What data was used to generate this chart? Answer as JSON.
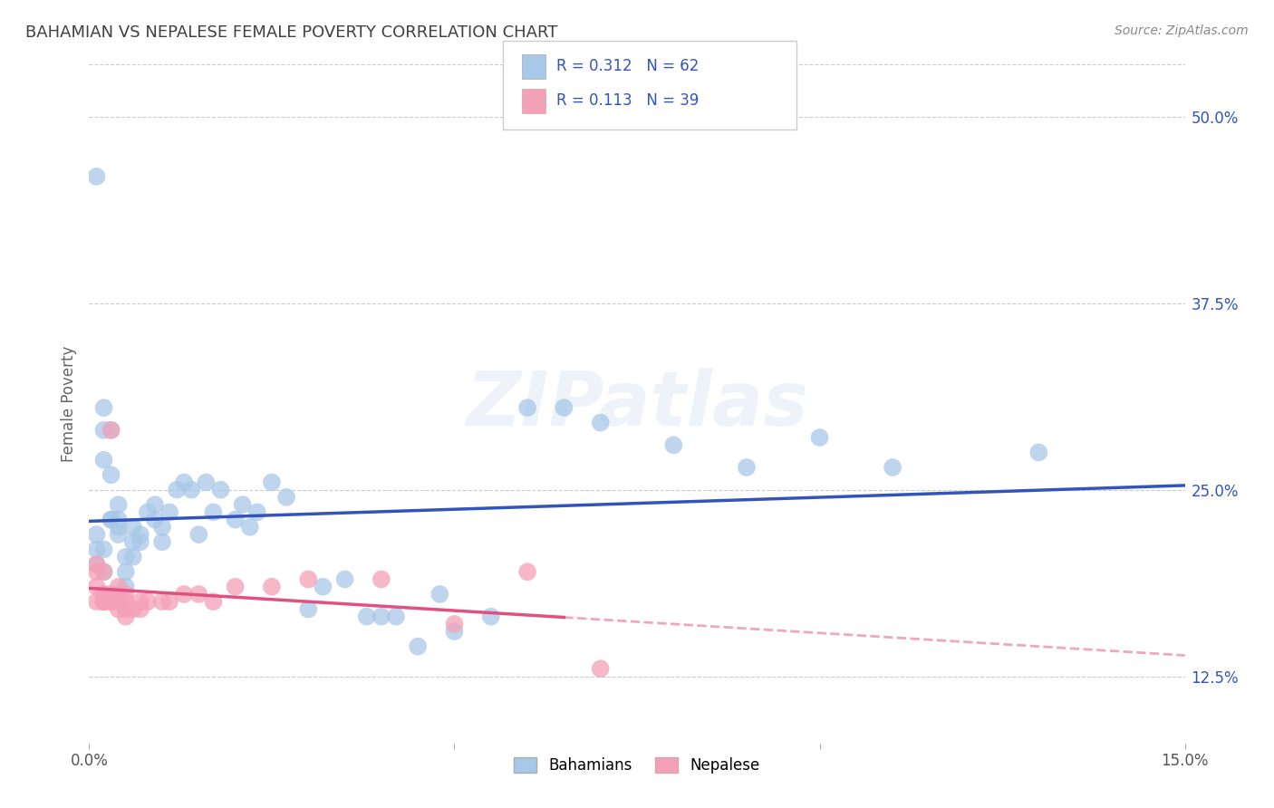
{
  "title": "BAHAMIAN VS NEPALESE FEMALE POVERTY CORRELATION CHART",
  "source": "Source: ZipAtlas.com",
  "ylabel": "Female Poverty",
  "xlim": [
    0.0,
    0.15
  ],
  "ylim": [
    0.08,
    0.535
  ],
  "xticks": [
    0.0,
    0.05,
    0.1,
    0.15
  ],
  "xticklabels": [
    "0.0%",
    "",
    "",
    "15.0%"
  ],
  "yticks_right": [
    0.125,
    0.25,
    0.375,
    0.5
  ],
  "yticklabels_right": [
    "12.5%",
    "25.0%",
    "37.5%",
    "50.0%"
  ],
  "bahamian_color": "#a8c8e8",
  "nepalese_color": "#f4a0b8",
  "bahamian_R": 0.312,
  "bahamian_N": 62,
  "nepalese_R": 0.113,
  "nepalese_N": 39,
  "bahamian_line_color": "#3355bb",
  "nepalese_line_color": "#e05080",
  "background_color": "#ffffff",
  "title_color": "#404040",
  "watermark": "ZIPatlas",
  "bahamian_x": [
    0.001,
    0.001,
    0.001,
    0.001,
    0.002,
    0.002,
    0.002,
    0.002,
    0.002,
    0.003,
    0.003,
    0.003,
    0.003,
    0.004,
    0.004,
    0.004,
    0.004,
    0.005,
    0.005,
    0.005,
    0.006,
    0.006,
    0.006,
    0.007,
    0.007,
    0.008,
    0.009,
    0.009,
    0.01,
    0.01,
    0.011,
    0.012,
    0.013,
    0.014,
    0.015,
    0.016,
    0.017,
    0.018,
    0.02,
    0.021,
    0.022,
    0.023,
    0.025,
    0.027,
    0.03,
    0.032,
    0.035,
    0.038,
    0.04,
    0.042,
    0.045,
    0.048,
    0.05,
    0.055,
    0.06,
    0.065,
    0.07,
    0.08,
    0.09,
    0.1,
    0.11,
    0.13
  ],
  "bahamian_y": [
    0.2,
    0.21,
    0.22,
    0.46,
    0.27,
    0.29,
    0.305,
    0.21,
    0.195,
    0.23,
    0.23,
    0.26,
    0.29,
    0.225,
    0.22,
    0.23,
    0.24,
    0.205,
    0.195,
    0.185,
    0.205,
    0.215,
    0.225,
    0.22,
    0.215,
    0.235,
    0.23,
    0.24,
    0.215,
    0.225,
    0.235,
    0.25,
    0.255,
    0.25,
    0.22,
    0.255,
    0.235,
    0.25,
    0.23,
    0.24,
    0.225,
    0.235,
    0.255,
    0.245,
    0.17,
    0.185,
    0.19,
    0.165,
    0.165,
    0.165,
    0.145,
    0.18,
    0.155,
    0.165,
    0.305,
    0.305,
    0.295,
    0.28,
    0.265,
    0.285,
    0.265,
    0.275
  ],
  "nepalese_x": [
    0.001,
    0.001,
    0.001,
    0.001,
    0.002,
    0.002,
    0.002,
    0.002,
    0.002,
    0.002,
    0.002,
    0.003,
    0.003,
    0.003,
    0.003,
    0.004,
    0.004,
    0.004,
    0.004,
    0.005,
    0.005,
    0.005,
    0.005,
    0.006,
    0.007,
    0.007,
    0.008,
    0.01,
    0.011,
    0.013,
    0.015,
    0.017,
    0.02,
    0.025,
    0.03,
    0.04,
    0.05,
    0.06,
    0.07
  ],
  "nepalese_y": [
    0.175,
    0.185,
    0.195,
    0.2,
    0.175,
    0.18,
    0.175,
    0.175,
    0.175,
    0.18,
    0.195,
    0.175,
    0.18,
    0.175,
    0.29,
    0.17,
    0.175,
    0.18,
    0.185,
    0.165,
    0.17,
    0.175,
    0.18,
    0.17,
    0.17,
    0.175,
    0.175,
    0.175,
    0.175,
    0.18,
    0.18,
    0.175,
    0.185,
    0.185,
    0.19,
    0.19,
    0.16,
    0.195,
    0.13
  ]
}
